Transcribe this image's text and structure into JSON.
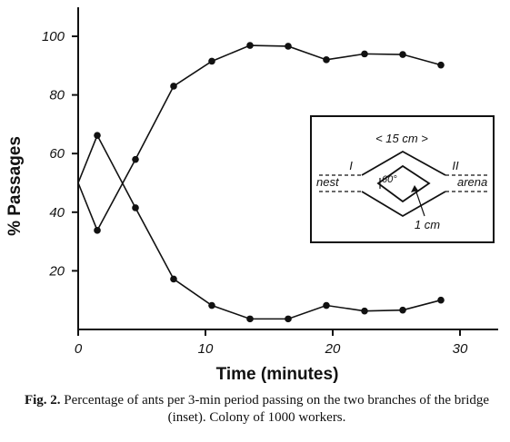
{
  "chart_data": {
    "type": "line",
    "title": "",
    "xlabel": "Time (minutes)",
    "ylabel": "% Passages",
    "xlim": [
      0,
      33
    ],
    "ylim": [
      0,
      110
    ],
    "xticks": [
      0,
      10,
      20,
      30
    ],
    "yticks": [
      20,
      40,
      60,
      80,
      100
    ],
    "xtick_labels": [
      "0",
      "10",
      "20",
      "30"
    ],
    "ytick_labels": [
      "20",
      "40",
      "60",
      "80",
      "100"
    ],
    "grid": false,
    "legend": "none",
    "series": [
      {
        "x": [
          0,
          1.5,
          4.5,
          7.5,
          10.5,
          13.5,
          16.5,
          19.5,
          22.5,
          25.5,
          28.5
        ],
        "y": [
          50,
          33.8,
          58,
          83,
          91.5,
          96.9,
          96.6,
          92,
          94,
          93.8,
          90.2
        ]
      },
      {
        "x": [
          0,
          1.5,
          4.5,
          7.5,
          10.5,
          13.5,
          16.5,
          19.5,
          22.5,
          25.5,
          28.5
        ],
        "y": [
          50,
          66.2,
          41.5,
          17.2,
          8.2,
          3.6,
          3.6,
          8.2,
          6.3,
          6.6,
          10
        ]
      }
    ]
  },
  "inset": {
    "dimension": "< 15 cm >",
    "branch_one": "I",
    "branch_two": "II",
    "nest": "nest",
    "arena": "arena",
    "angle": "60°",
    "width": "1 cm"
  },
  "caption": {
    "label": "Fig. 2.",
    "text": "Percentage of ants per 3-min period passing on the two branches of the bridge (inset). Colony of 1000 workers."
  }
}
